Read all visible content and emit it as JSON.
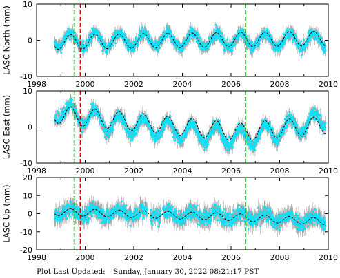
{
  "footer": {
    "label": "Plot Last Updated:",
    "timestamp": "Sunday, January 30, 2022 08:21:17 PST"
  },
  "colors": {
    "error_bars": "#a6a6a6",
    "observations": "#00e5ff",
    "model": "#000000",
    "event_green": "#00aa00",
    "event_red": "#dd0000"
  },
  "chart_data": [
    {
      "type": "scatter",
      "ylabel": "LASC North (mm)",
      "xlim": [
        1998,
        2010
      ],
      "ylim": [
        -10,
        10
      ],
      "x_ticks": [
        1998,
        2000,
        2002,
        2004,
        2006,
        2008,
        2010
      ],
      "y_ticks": [
        -10,
        0,
        10
      ],
      "time_span": [
        1998.75,
        2009.88
      ],
      "series": [
        {
          "style": "error-bars + points",
          "noise_amplitude": 2.0,
          "trend": [
            [
              1998.75,
              0
            ],
            [
              2009.88,
              0
            ]
          ]
        },
        {
          "style": "dashed model",
          "seasonal_amplitude": 2.0,
          "trend": [
            [
              1998.75,
              -0.5
            ],
            [
              2009.88,
              0.5
            ]
          ]
        }
      ],
      "vertical_lines": [
        {
          "x": 1999.55,
          "color": "green",
          "style": "dashed"
        },
        {
          "x": 1999.8,
          "color": "red",
          "style": "dashed"
        },
        {
          "x": 2006.6,
          "color": "green",
          "style": "dashed"
        }
      ]
    },
    {
      "type": "scatter",
      "ylabel": "LASC East (mm)",
      "xlim": [
        1998,
        2010
      ],
      "ylim": [
        -10,
        10
      ],
      "x_ticks": [
        1998,
        2000,
        2002,
        2004,
        2006,
        2008,
        2010
      ],
      "y_ticks": [
        -10,
        0,
        10
      ],
      "time_span": [
        1998.75,
        2009.88
      ],
      "series": [
        {
          "style": "error-bars + points",
          "noise_amplitude": 2.2,
          "trend": [
            [
              1998.75,
              5
            ],
            [
              2001,
              1
            ],
            [
              2006.5,
              -3
            ],
            [
              2009.88,
              2
            ]
          ]
        },
        {
          "style": "dashed model",
          "seasonal_amplitude": 2.5,
          "trend": [
            [
              1998.75,
              3.5
            ],
            [
              2006.5,
              -1.5
            ],
            [
              2007,
              -1
            ],
            [
              2009.88,
              0.5
            ]
          ]
        }
      ],
      "vertical_lines": [
        {
          "x": 1999.55,
          "color": "green",
          "style": "dashed"
        },
        {
          "x": 1999.8,
          "color": "red",
          "style": "dashed"
        },
        {
          "x": 2006.6,
          "color": "green",
          "style": "dashed"
        }
      ]
    },
    {
      "type": "scatter",
      "ylabel": "LASC Up (mm)",
      "xlim": [
        1998,
        2010
      ],
      "ylim": [
        -20,
        20
      ],
      "x_ticks": [
        1998,
        2000,
        2002,
        2004,
        2006,
        2008,
        2010
      ],
      "y_ticks": [
        -20,
        -10,
        0,
        10,
        20
      ],
      "time_span": [
        1998.75,
        2009.88
      ],
      "series": [
        {
          "style": "error-bars + points",
          "noise_amplitude": 5.5,
          "trend": [
            [
              1998.75,
              1
            ],
            [
              2005.5,
              -1
            ],
            [
              2009.88,
              -4
            ]
          ]
        },
        {
          "style": "dashed model",
          "seasonal_amplitude": 2.0,
          "trend": [
            [
              1998.75,
              1
            ],
            [
              2005.5,
              -1.5
            ],
            [
              2009.88,
              -4.5
            ]
          ]
        }
      ],
      "vertical_lines": [
        {
          "x": 1999.55,
          "color": "green",
          "style": "dashed"
        },
        {
          "x": 1999.8,
          "color": "red",
          "style": "dashed"
        },
        {
          "x": 2006.6,
          "color": "green",
          "style": "dashed"
        }
      ]
    }
  ]
}
